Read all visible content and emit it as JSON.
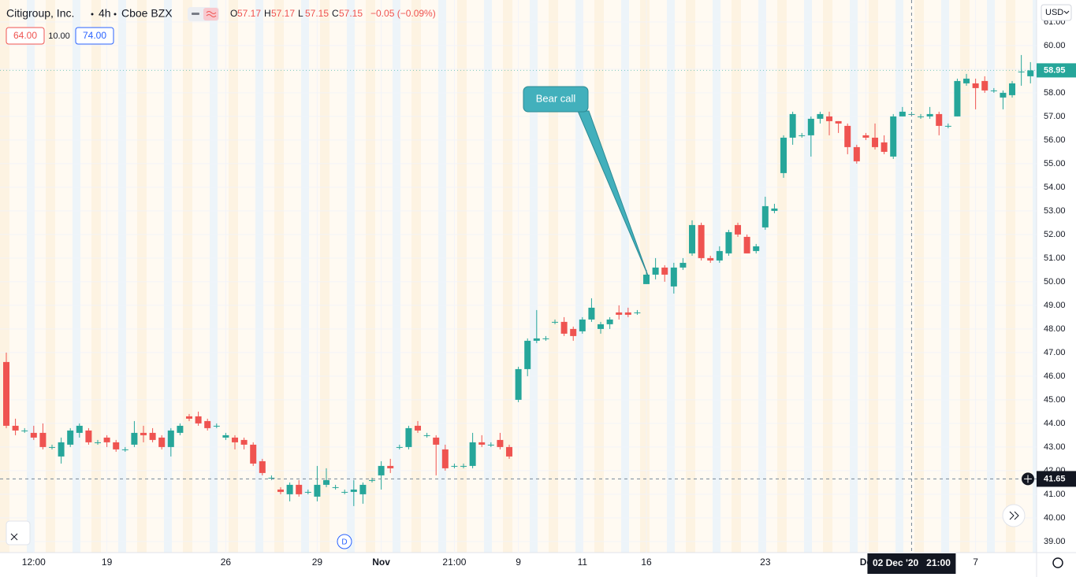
{
  "header": {
    "symbol": "Citigroup, Inc.",
    "interval": "4h",
    "exchange": "Cboe BZX",
    "ohlc": [
      {
        "key": "O",
        "value": "57.17"
      },
      {
        "key": "H",
        "value": "57.17"
      },
      {
        "key": "L",
        "value": "57.15"
      },
      {
        "key": "C",
        "value": "57.15"
      }
    ],
    "change": "−0.05 (−0.09%)",
    "indicator_boxes": [
      "64.00",
      "10.00",
      "74.00"
    ],
    "currency": "USD"
  },
  "chart_data": {
    "type": "candlestick",
    "up_color": "#26a69a",
    "down_color": "#ef5350",
    "xlim": [
      -0.69,
      112.67
    ],
    "ylim": [
      38.53,
      61.93
    ],
    "yticks": [
      {
        "value": 39,
        "label": "39.00"
      },
      {
        "value": 40,
        "label": "40.00"
      },
      {
        "value": 41,
        "label": "41.00"
      },
      {
        "value": 42,
        "label": "42.00"
      },
      {
        "value": 43,
        "label": "43.00"
      },
      {
        "value": 44,
        "label": "44.00"
      },
      {
        "value": 45,
        "label": "45.00"
      },
      {
        "value": 46,
        "label": "46.00"
      },
      {
        "value": 47,
        "label": "47.00"
      },
      {
        "value": 48,
        "label": "48.00"
      },
      {
        "value": 49,
        "label": "49.00"
      },
      {
        "value": 50,
        "label": "50.00"
      },
      {
        "value": 51,
        "label": "51.00"
      },
      {
        "value": 52,
        "label": "52.00"
      },
      {
        "value": 53,
        "label": "53.00"
      },
      {
        "value": 54,
        "label": "54.00"
      },
      {
        "value": 55,
        "label": "55.00"
      },
      {
        "value": 56,
        "label": "56.00"
      },
      {
        "value": 57,
        "label": "57.00"
      },
      {
        "value": 58,
        "label": "58.00"
      },
      {
        "value": 59,
        "label": "59.00"
      },
      {
        "value": 60,
        "label": "60.00"
      },
      {
        "value": 61,
        "label": "61.00"
      }
    ],
    "xticks": [
      {
        "value": 3,
        "label": "12:00"
      },
      {
        "value": 11,
        "label": "19"
      },
      {
        "value": 24,
        "label": "26"
      },
      {
        "value": 34,
        "label": "29"
      },
      {
        "value": 41,
        "label": "Nov"
      },
      {
        "value": 49,
        "label": "21:00"
      },
      {
        "value": 56,
        "label": "9"
      },
      {
        "value": 63,
        "label": "11"
      },
      {
        "value": 70,
        "label": "16"
      },
      {
        "value": 83,
        "label": "23"
      },
      {
        "value": 94,
        "label": "De"
      },
      {
        "value": 106,
        "label": "7"
      }
    ],
    "open": [
      46.6,
      43.9,
      43.7,
      43.6,
      43.6,
      43.0,
      42.6,
      43.1,
      43.6,
      43.7,
      43.2,
      43.4,
      43.2,
      42.9,
      43.1,
      43.6,
      43.6,
      43.4,
      43.0,
      43.6,
      44.3,
      44.3,
      44.1,
      43.9,
      43.4,
      43.4,
      43.3,
      43.1,
      42.4,
      41.7,
      41.2,
      41.0,
      41.4,
      41.1,
      40.9,
      41.4,
      41.3,
      41.1,
      41.1,
      41.0,
      41.6,
      41.8,
      42.2,
      43.0,
      43.0,
      43.9,
      43.5,
      43.4,
      42.9,
      42.2,
      42.2,
      42.2,
      43.2,
      43.1,
      43.3,
      43.0,
      45.0,
      46.3,
      47.5,
      47.6,
      48.3,
      48.3,
      48.0,
      47.9,
      48.4,
      48.0,
      48.2,
      48.7,
      48.7,
      48.7,
      49.9,
      50.3,
      50.6,
      49.8,
      50.6,
      51.2,
      52.4,
      51.0,
      50.9,
      51.2,
      52.4,
      51.9,
      51.3,
      52.3,
      53.0,
      54.6,
      56.1,
      56.2,
      56.2,
      56.9,
      57.0,
      56.8,
      56.6,
      55.7,
      56.2,
      56.1,
      55.9,
      55.3,
      57.0,
      57.1,
      57.0,
      57.0,
      57.1,
      56.6,
      57.0,
      58.4,
      58.4,
      58.5,
      58.1,
      57.8,
      57.9,
      58.9,
      58.7
    ],
    "high": [
      47.0,
      44.2,
      43.8,
      43.9,
      44.0,
      43.1,
      43.4,
      43.8,
      44.0,
      43.8,
      43.3,
      43.5,
      43.3,
      43.0,
      44.1,
      43.9,
      43.8,
      43.5,
      43.8,
      44.0,
      44.4,
      44.5,
      44.2,
      44.0,
      43.6,
      43.5,
      43.4,
      43.2,
      42.5,
      41.8,
      41.3,
      41.5,
      41.6,
      41.2,
      42.2,
      42.1,
      41.4,
      41.2,
      41.6,
      41.5,
      41.7,
      42.4,
      42.5,
      43.1,
      43.9,
      44.1,
      43.6,
      43.5,
      43.1,
      42.3,
      42.3,
      43.6,
      43.5,
      43.2,
      43.6,
      43.1,
      46.4,
      47.6,
      48.8,
      47.7,
      48.4,
      48.5,
      48.1,
      48.5,
      49.3,
      48.3,
      48.5,
      49.0,
      48.9,
      48.8,
      50.5,
      51.0,
      50.7,
      50.8,
      51.0,
      52.6,
      52.5,
      51.1,
      51.5,
      52.2,
      52.5,
      52.0,
      51.6,
      53.6,
      53.3,
      56.2,
      57.2,
      56.3,
      57.0,
      57.2,
      57.2,
      56.8,
      56.7,
      55.8,
      56.3,
      56.7,
      56.2,
      57.1,
      57.4,
      57.2,
      57.1,
      57.4,
      57.2,
      56.7,
      58.6,
      58.8,
      58.6,
      58.7,
      58.2,
      58.1,
      58.5,
      59.6,
      59.3
    ],
    "low": [
      43.8,
      43.5,
      43.6,
      43.3,
      42.9,
      42.9,
      42.3,
      43.0,
      43.4,
      43.1,
      43.1,
      43.0,
      42.8,
      42.8,
      43.0,
      43.2,
      43.2,
      42.9,
      42.6,
      43.5,
      44.1,
      43.9,
      43.7,
      43.8,
      43.3,
      42.9,
      42.9,
      42.2,
      41.8,
      41.6,
      41.0,
      40.7,
      40.9,
      41.0,
      40.7,
      41.3,
      41.2,
      41.0,
      40.5,
      40.6,
      41.5,
      41.2,
      41.9,
      42.9,
      42.9,
      43.6,
      43.4,
      41.8,
      42.0,
      42.1,
      42.1,
      42.1,
      43.0,
      43.0,
      42.9,
      42.5,
      44.9,
      46.0,
      47.4,
      47.5,
      48.2,
      47.7,
      47.5,
      47.8,
      48.3,
      47.8,
      48.0,
      48.4,
      48.5,
      48.6,
      49.9,
      50.1,
      50.0,
      49.5,
      50.5,
      51.1,
      50.9,
      50.8,
      50.8,
      51.1,
      51.9,
      51.2,
      51.2,
      52.2,
      52.9,
      54.4,
      55.8,
      56.1,
      55.3,
      56.7,
      56.2,
      56.3,
      55.4,
      55.0,
      56.0,
      55.6,
      55.4,
      55.2,
      57.0,
      57.0,
      56.9,
      56.9,
      56.2,
      56.5,
      57.0,
      58.3,
      57.3,
      58.0,
      58.0,
      57.3,
      57.8,
      58.3,
      58.4
    ],
    "close": [
      43.9,
      43.7,
      43.7,
      43.4,
      43.0,
      43.0,
      43.2,
      43.7,
      43.9,
      43.2,
      43.2,
      43.2,
      42.9,
      42.9,
      43.6,
      43.5,
      43.3,
      43.0,
      43.7,
      43.9,
      44.2,
      44.0,
      43.8,
      43.9,
      43.5,
      43.2,
      43.1,
      42.3,
      41.9,
      41.7,
      41.1,
      41.4,
      41.0,
      41.1,
      41.4,
      41.6,
      41.3,
      41.1,
      41.2,
      41.4,
      41.6,
      42.2,
      42.1,
      43.0,
      43.8,
      43.7,
      43.5,
      43.1,
      42.1,
      42.2,
      42.2,
      43.2,
      43.1,
      43.1,
      43.0,
      42.6,
      46.3,
      47.5,
      47.6,
      47.6,
      48.3,
      47.8,
      47.7,
      48.4,
      48.9,
      48.2,
      48.4,
      48.6,
      48.6,
      48.7,
      50.3,
      50.6,
      50.3,
      50.6,
      50.8,
      52.4,
      51.0,
      50.9,
      51.3,
      52.1,
      52.0,
      51.2,
      51.5,
      53.2,
      53.1,
      56.1,
      57.1,
      56.2,
      56.9,
      57.1,
      56.8,
      56.7,
      55.7,
      55.1,
      56.1,
      55.7,
      55.5,
      57.0,
      57.2,
      57.1,
      57.0,
      57.1,
      56.6,
      56.6,
      58.5,
      58.6,
      58.2,
      58.1,
      58.1,
      58.0,
      58.4,
      58.9,
      58.95
    ],
    "crosshair": {
      "price": 41.65,
      "price_label": "41.65",
      "time_label": "02 Dec '20   21:00",
      "index": 99
    },
    "annotation": {
      "text": "Bear call"
    },
    "marker": "D"
  }
}
